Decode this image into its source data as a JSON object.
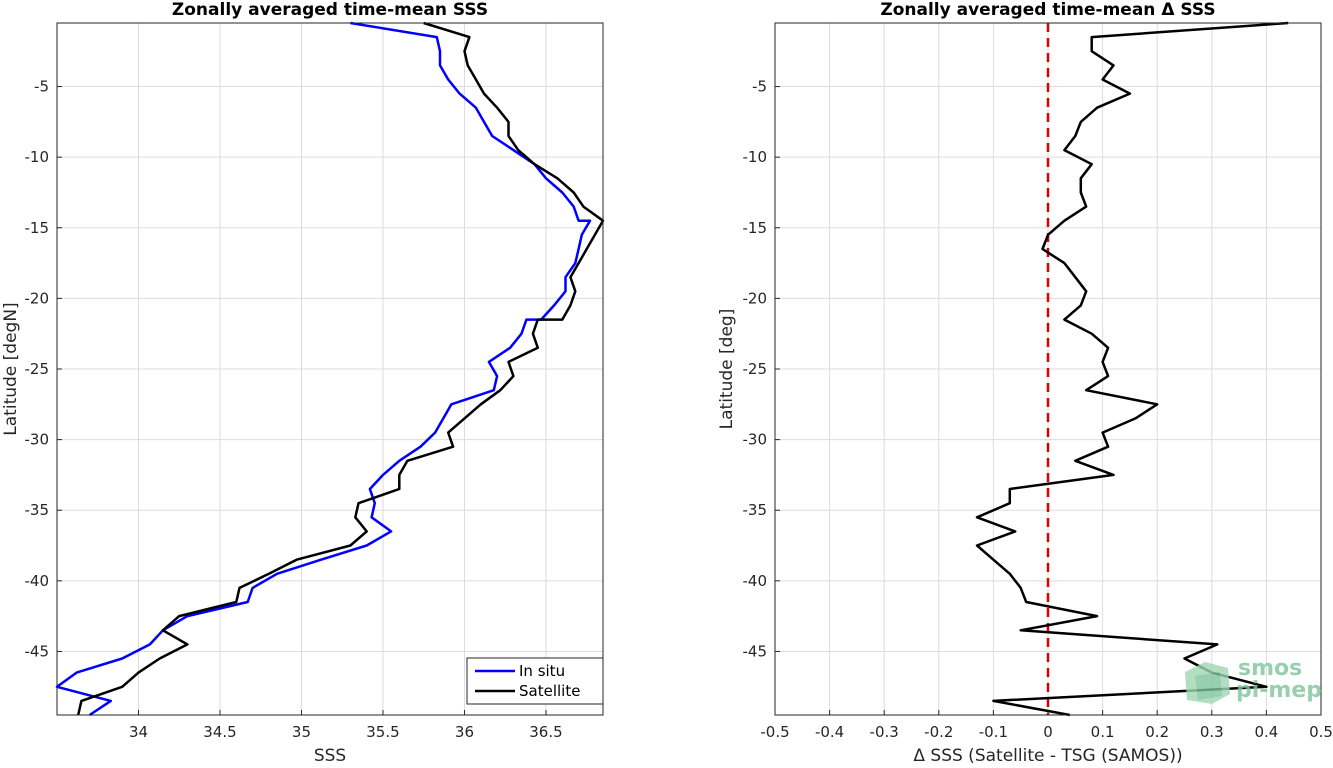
{
  "chart_data": [
    {
      "type": "line",
      "title": "Zonally averaged time-mean SSS",
      "xlabel": "SSS",
      "ylabel": "Latitude [degN]",
      "xlim": [
        33.5,
        36.85
      ],
      "ylim": [
        -49.5,
        -0.5
      ],
      "xticks": [
        34,
        34.5,
        35,
        35.5,
        36,
        36.5
      ],
      "yticks": [
        -5,
        -10,
        -15,
        -20,
        -25,
        -30,
        -35,
        -40,
        -45
      ],
      "grid": true,
      "legend": "bottom-right",
      "series": [
        {
          "name": "In situ",
          "color": "#0000ff",
          "points": [
            [
              35.3,
              -0.5
            ],
            [
              35.83,
              -1.5
            ],
            [
              35.85,
              -2.5
            ],
            [
              35.85,
              -3.5
            ],
            [
              35.9,
              -4.5
            ],
            [
              35.97,
              -5.5
            ],
            [
              36.07,
              -6.5
            ],
            [
              36.12,
              -7.5
            ],
            [
              36.17,
              -8.5
            ],
            [
              36.3,
              -9.5
            ],
            [
              36.43,
              -10.5
            ],
            [
              36.5,
              -11.5
            ],
            [
              36.6,
              -12.5
            ],
            [
              36.67,
              -13.5
            ],
            [
              36.7,
              -14.5
            ],
            [
              36.77,
              -14.5
            ],
            [
              36.72,
              -15.5
            ],
            [
              36.7,
              -16.5
            ],
            [
              36.68,
              -17.5
            ],
            [
              36.62,
              -18.5
            ],
            [
              36.62,
              -19.5
            ],
            [
              36.55,
              -20.5
            ],
            [
              36.47,
              -21.5
            ],
            [
              36.38,
              -21.5
            ],
            [
              36.35,
              -22.5
            ],
            [
              36.28,
              -23.5
            ],
            [
              36.15,
              -24.5
            ],
            [
              36.2,
              -25.5
            ],
            [
              36.18,
              -26.5
            ],
            [
              35.92,
              -27.5
            ],
            [
              35.87,
              -28.5
            ],
            [
              35.82,
              -29.5
            ],
            [
              35.73,
              -30.5
            ],
            [
              35.6,
              -31.5
            ],
            [
              35.5,
              -32.5
            ],
            [
              35.42,
              -33.5
            ],
            [
              35.45,
              -34.5
            ],
            [
              35.43,
              -35.5
            ],
            [
              35.55,
              -36.5
            ],
            [
              35.4,
              -37.5
            ],
            [
              35.12,
              -38.5
            ],
            [
              34.85,
              -39.5
            ],
            [
              34.7,
              -40.5
            ],
            [
              34.67,
              -41.5
            ],
            [
              34.3,
              -42.5
            ],
            [
              34.15,
              -43.5
            ],
            [
              34.07,
              -44.5
            ],
            [
              33.9,
              -45.5
            ],
            [
              33.62,
              -46.5
            ],
            [
              33.5,
              -47.5
            ],
            [
              33.83,
              -48.5
            ],
            [
              33.7,
              -49.5
            ]
          ]
        },
        {
          "name": "Satellite",
          "color": "#000000",
          "points": [
            [
              35.75,
              -0.5
            ],
            [
              36.03,
              -1.5
            ],
            [
              36.0,
              -2.5
            ],
            [
              36.02,
              -3.5
            ],
            [
              36.07,
              -4.5
            ],
            [
              36.12,
              -5.5
            ],
            [
              36.2,
              -6.5
            ],
            [
              36.27,
              -7.5
            ],
            [
              36.27,
              -8.5
            ],
            [
              36.33,
              -9.5
            ],
            [
              36.43,
              -10.5
            ],
            [
              36.57,
              -11.5
            ],
            [
              36.67,
              -12.5
            ],
            [
              36.73,
              -13.5
            ],
            [
              36.85,
              -14.5
            ],
            [
              36.8,
              -15.5
            ],
            [
              36.75,
              -16.5
            ],
            [
              36.7,
              -17.5
            ],
            [
              36.65,
              -18.5
            ],
            [
              36.68,
              -19.5
            ],
            [
              36.65,
              -20.5
            ],
            [
              36.6,
              -21.5
            ],
            [
              36.45,
              -21.5
            ],
            [
              36.42,
              -22.5
            ],
            [
              36.45,
              -23.5
            ],
            [
              36.27,
              -24.5
            ],
            [
              36.3,
              -25.5
            ],
            [
              36.22,
              -26.5
            ],
            [
              36.1,
              -27.5
            ],
            [
              36.0,
              -28.5
            ],
            [
              35.9,
              -29.5
            ],
            [
              35.93,
              -30.5
            ],
            [
              35.65,
              -31.5
            ],
            [
              35.6,
              -32.5
            ],
            [
              35.6,
              -33.5
            ],
            [
              35.35,
              -34.5
            ],
            [
              35.33,
              -35.5
            ],
            [
              35.4,
              -36.5
            ],
            [
              35.3,
              -37.5
            ],
            [
              34.97,
              -38.5
            ],
            [
              34.8,
              -39.5
            ],
            [
              34.62,
              -40.5
            ],
            [
              34.6,
              -41.5
            ],
            [
              34.25,
              -42.5
            ],
            [
              34.15,
              -43.5
            ],
            [
              34.3,
              -44.5
            ],
            [
              34.13,
              -45.5
            ],
            [
              34.0,
              -46.5
            ],
            [
              33.9,
              -47.5
            ],
            [
              33.65,
              -48.5
            ],
            [
              33.63,
              -49.5
            ]
          ]
        }
      ]
    },
    {
      "type": "line",
      "title": "Zonally averaged time-mean Δ SSS",
      "xlabel": "Δ SSS (Satellite - TSG (SAMOS))",
      "ylabel": "Latitude [deg]",
      "xlim": [
        -0.5,
        0.5
      ],
      "ylim": [
        -49.5,
        -0.5
      ],
      "xticks": [
        -0.5,
        -0.4,
        -0.3,
        -0.2,
        -0.1,
        0,
        0.1,
        0.2,
        0.3,
        0.4,
        0.5
      ],
      "yticks": [
        -5,
        -10,
        -15,
        -20,
        -25,
        -30,
        -35,
        -40,
        -45
      ],
      "grid": true,
      "reference_line": {
        "x": 0,
        "color": "#dd0000",
        "style": "dashed"
      },
      "series": [
        {
          "color": "#000000",
          "points": [
            [
              0.44,
              -0.5
            ],
            [
              0.08,
              -1.5
            ],
            [
              0.08,
              -2.5
            ],
            [
              0.12,
              -3.5
            ],
            [
              0.1,
              -4.5
            ],
            [
              0.15,
              -5.5
            ],
            [
              0.09,
              -6.5
            ],
            [
              0.06,
              -7.5
            ],
            [
              0.05,
              -8.5
            ],
            [
              0.03,
              -9.5
            ],
            [
              0.08,
              -10.5
            ],
            [
              0.06,
              -11.5
            ],
            [
              0.06,
              -12.5
            ],
            [
              0.07,
              -13.5
            ],
            [
              0.03,
              -14.5
            ],
            [
              0.0,
              -15.5
            ],
            [
              -0.01,
              -16.5
            ],
            [
              0.03,
              -17.5
            ],
            [
              0.05,
              -18.5
            ],
            [
              0.07,
              -19.5
            ],
            [
              0.06,
              -20.5
            ],
            [
              0.03,
              -21.5
            ],
            [
              0.08,
              -22.5
            ],
            [
              0.11,
              -23.5
            ],
            [
              0.1,
              -24.5
            ],
            [
              0.11,
              -25.5
            ],
            [
              0.07,
              -26.5
            ],
            [
              0.2,
              -27.5
            ],
            [
              0.16,
              -28.5
            ],
            [
              0.1,
              -29.5
            ],
            [
              0.11,
              -30.5
            ],
            [
              0.05,
              -31.5
            ],
            [
              0.12,
              -32.5
            ],
            [
              -0.07,
              -33.5
            ],
            [
              -0.07,
              -34.5
            ],
            [
              -0.13,
              -35.5
            ],
            [
              -0.06,
              -36.5
            ],
            [
              -0.13,
              -37.5
            ],
            [
              -0.1,
              -38.5
            ],
            [
              -0.07,
              -39.5
            ],
            [
              -0.05,
              -40.5
            ],
            [
              -0.04,
              -41.5
            ],
            [
              0.09,
              -42.5
            ],
            [
              -0.05,
              -43.5
            ],
            [
              0.31,
              -44.5
            ],
            [
              0.25,
              -45.5
            ],
            [
              0.3,
              -46.5
            ],
            [
              0.4,
              -47.5
            ],
            [
              -0.1,
              -48.5
            ],
            [
              0.04,
              -49.5
            ]
          ]
        }
      ]
    }
  ],
  "watermark": {
    "line1": "smos",
    "line2": "pi-mep",
    "color": "#7fc49b"
  }
}
